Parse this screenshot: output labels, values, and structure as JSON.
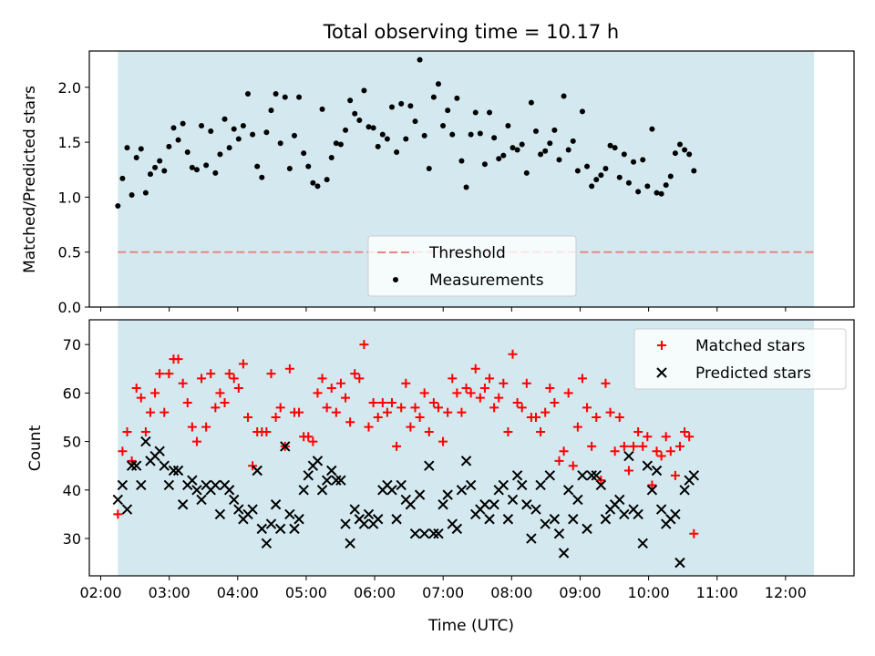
{
  "chart_data": [
    {
      "type": "scatter",
      "title": "Total observing time = 10.17 h",
      "xlabel": "",
      "ylabel": "Matched/Predicted stars",
      "xlim": [
        "01:50",
        "13:00"
      ],
      "ylim": [
        0,
        2.33
      ],
      "yticks": [
        "0.0",
        "0.5",
        "1.0",
        "1.5",
        "2.0"
      ],
      "shaded_span": [
        "02:15",
        "12:25"
      ],
      "shade_color": "#d3e9ef",
      "threshold": {
        "name": "Threshold",
        "value": 0.5,
        "color": "#e88585"
      },
      "legend": {
        "position": "lower center",
        "entries": [
          "Threshold",
          "Measurements"
        ]
      },
      "series": [
        {
          "name": "Measurements",
          "color": "#000000",
          "t0": "02:15",
          "step_minutes": 4.07,
          "values": [
            0.92,
            1.17,
            1.45,
            1.02,
            1.36,
            1.44,
            1.04,
            1.21,
            1.27,
            1.33,
            1.24,
            1.46,
            1.63,
            1.52,
            1.67,
            1.41,
            1.27,
            1.25,
            1.65,
            1.29,
            1.6,
            1.22,
            1.39,
            1.71,
            1.45,
            1.62,
            1.53,
            1.65,
            1.94,
            1.57,
            1.28,
            1.18,
            1.59,
            1.79,
            1.94,
            1.49,
            1.91,
            1.26,
            1.56,
            1.91,
            1.4,
            1.28,
            1.13,
            1.1,
            1.8,
            1.16,
            1.36,
            1.49,
            1.48,
            1.61,
            1.88,
            1.76,
            1.7,
            1.97,
            1.64,
            1.63,
            1.46,
            1.57,
            1.53,
            1.82,
            1.41,
            1.85,
            1.53,
            1.83,
            1.69,
            2.25,
            1.56,
            1.26,
            1.91,
            2.03,
            1.65,
            1.79,
            1.57,
            1.9,
            1.33,
            1.09,
            1.57,
            1.77,
            1.58,
            1.3,
            1.77,
            1.54,
            1.35,
            1.38,
            1.65,
            1.45,
            1.43,
            1.48,
            1.22,
            1.86,
            1.6,
            1.39,
            1.42,
            1.49,
            1.61,
            1.34,
            1.92,
            1.43,
            1.51,
            1.24,
            1.78,
            1.28,
            1.1,
            1.16,
            1.2,
            1.26,
            1.47,
            1.45,
            1.18,
            1.39,
            1.13,
            1.32,
            1.05,
            1.34,
            1.1,
            1.62,
            1.04,
            1.03,
            1.11,
            1.19,
            1.4,
            1.48,
            1.43,
            1.39,
            1.24
          ]
        }
      ]
    },
    {
      "type": "scatter",
      "title": "",
      "xlabel": "Time (UTC)",
      "ylabel": "Count",
      "xlim": [
        "01:50",
        "13:00"
      ],
      "ylim": [
        22.3,
        75.1
      ],
      "yticks": [
        "30",
        "40",
        "50",
        "60",
        "70"
      ],
      "xticks": [
        "02:00",
        "03:00",
        "04:00",
        "05:00",
        "06:00",
        "07:00",
        "08:00",
        "09:00",
        "10:00",
        "11:00",
        "12:00"
      ],
      "shaded_span": [
        "02:15",
        "12:25"
      ],
      "shade_color": "#d3e9ef",
      "legend": {
        "position": "upper right",
        "entries": [
          "Matched stars",
          "Predicted stars"
        ]
      },
      "series": [
        {
          "name": "Matched stars",
          "marker": "+",
          "color": "#ff0000",
          "t0": "02:15",
          "step_minutes": 4.07,
          "values": [
            35,
            48,
            52,
            46,
            61,
            59,
            52,
            56,
            60,
            64,
            56,
            64,
            67,
            67,
            62,
            58,
            53,
            50,
            63,
            53,
            64,
            57,
            60,
            58,
            64,
            63,
            61,
            66,
            55,
            45,
            52,
            52,
            52,
            64,
            55,
            57,
            49,
            65,
            56,
            56,
            51,
            51,
            50,
            60,
            63,
            57,
            61,
            56,
            62,
            59,
            54,
            64,
            63,
            70,
            53,
            58,
            55,
            58,
            56,
            58,
            49,
            57,
            62,
            53,
            57,
            55,
            60,
            52,
            58,
            57,
            50,
            56,
            63,
            60,
            56,
            61,
            60,
            65,
            59,
            61,
            63,
            57,
            59,
            62,
            52,
            68,
            58,
            57,
            62,
            55,
            55,
            52,
            56,
            61,
            58,
            46,
            48,
            60,
            45,
            53,
            63,
            57,
            49,
            55,
            42,
            62,
            56,
            48,
            55,
            49,
            44,
            49,
            52,
            49,
            51,
            41,
            48,
            47,
            51,
            48,
            43,
            49,
            52,
            51,
            31
          ]
        },
        {
          "name": "Predicted stars",
          "marker": "x",
          "color": "#000000",
          "t0": "02:15",
          "step_minutes": 4.07,
          "values": [
            38,
            41,
            36,
            45,
            45,
            41,
            50,
            46,
            47,
            48,
            45,
            41,
            44,
            44,
            37,
            41,
            42,
            40,
            38,
            41,
            40,
            41,
            35,
            41,
            40,
            38,
            36,
            34,
            35,
            36,
            44,
            32,
            29,
            33,
            37,
            32,
            49,
            35,
            32,
            34,
            40,
            43,
            45,
            46,
            40,
            42,
            44,
            42,
            42,
            33,
            29,
            36,
            34,
            33,
            35,
            33,
            34,
            40,
            41,
            40,
            34,
            41,
            38,
            37,
            31,
            39,
            31,
            45,
            31,
            31,
            37,
            39,
            33,
            32,
            40,
            46,
            41,
            35,
            36,
            37,
            34,
            37,
            40,
            41,
            34,
            38,
            43,
            41,
            37,
            30,
            36,
            41,
            33,
            43,
            34,
            31,
            27,
            40,
            34,
            38,
            43,
            32,
            43,
            43,
            41,
            34,
            36,
            37,
            38,
            35,
            47,
            36,
            35,
            29,
            45,
            40,
            44,
            36,
            33,
            34,
            35,
            25,
            40,
            42,
            43
          ]
        }
      ]
    }
  ]
}
